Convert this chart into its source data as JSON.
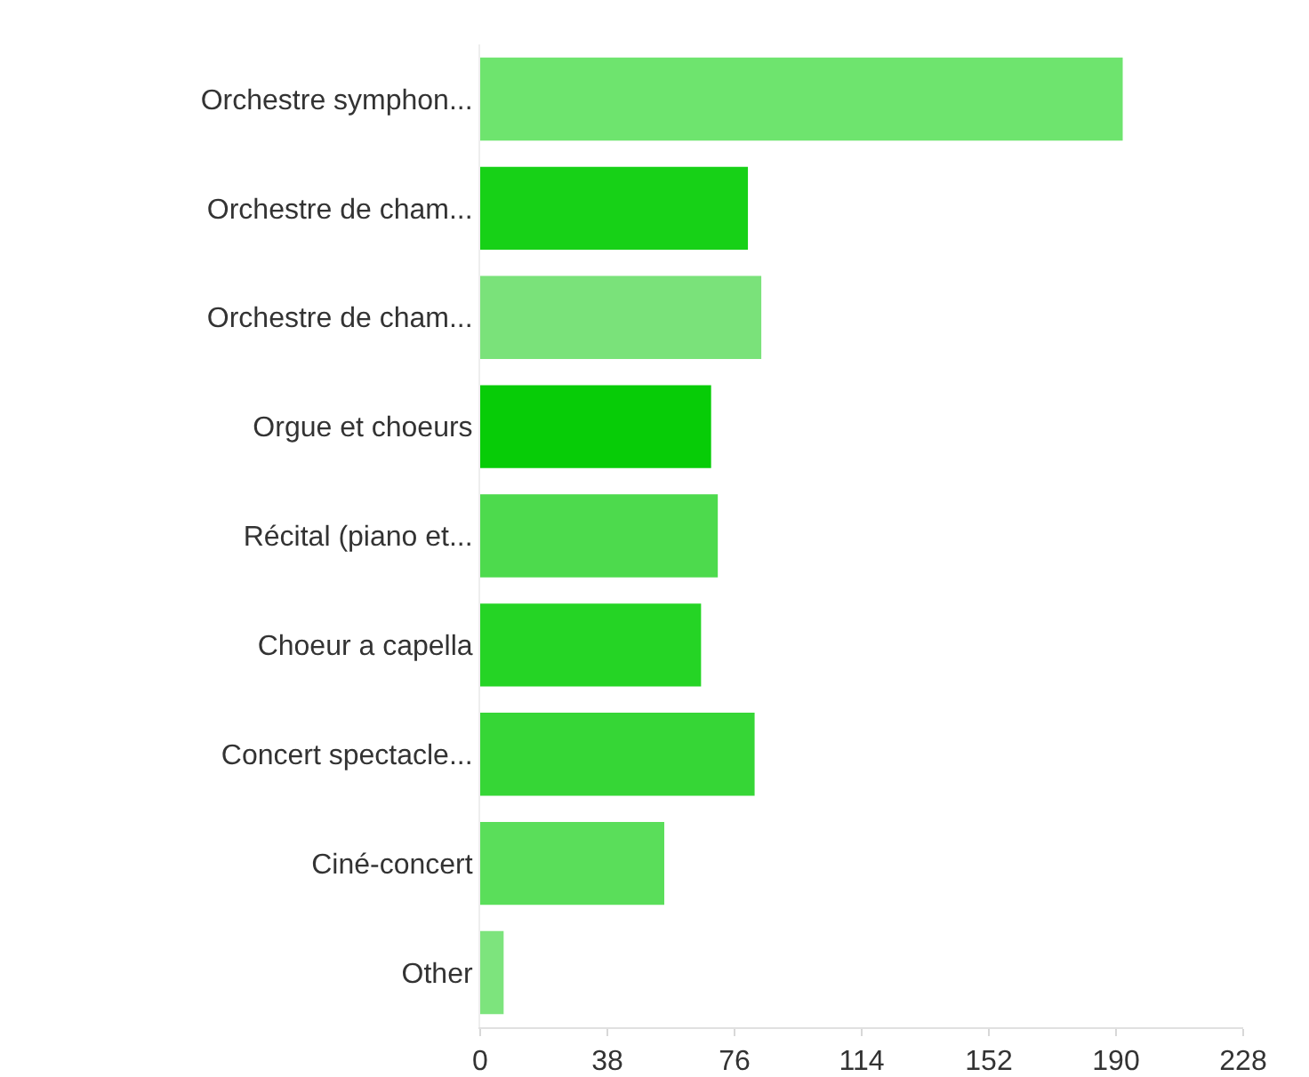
{
  "chart_data": {
    "type": "bar",
    "orientation": "horizontal",
    "categories": [
      "Orchestre symphon...",
      "Orchestre de cham...",
      "Orchestre de cham...",
      "Orgue et choeurs",
      "Récital (piano et...",
      "Choeur a capella",
      "Concert spectacle...",
      "Ciné-concert",
      "Other"
    ],
    "values": [
      192,
      80,
      84,
      69,
      71,
      66,
      82,
      55,
      7
    ],
    "colors": [
      "#6ee46e",
      "#17d117",
      "#7ae27a",
      "#07cc07",
      "#4dda4d",
      "#25d425",
      "#36d636",
      "#5ade5a",
      "#7de47d"
    ],
    "xlim": [
      0,
      228
    ],
    "xticks": [
      0,
      38,
      76,
      114,
      152,
      190,
      228
    ],
    "grid": false
  }
}
